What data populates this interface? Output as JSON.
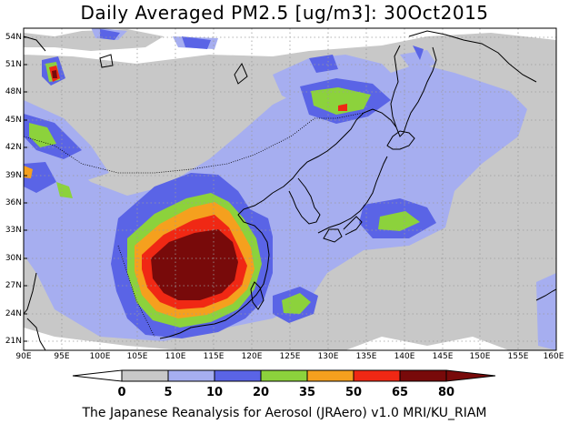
{
  "title": "Daily Averaged PM2.5 [ug/m3]: 30Oct2015",
  "footer": "The Japanese Reanalysis for Aerosol (JRAero) v1.0 MRI/KU_RIAM",
  "map": {
    "lon_range": [
      90,
      160
    ],
    "lat_range": [
      20,
      55
    ],
    "lat_ticks": [
      "54N",
      "51N",
      "48N",
      "45N",
      "42N",
      "39N",
      "36N",
      "33N",
      "30N",
      "27N",
      "24N",
      "21N"
    ],
    "lon_ticks": [
      "90E",
      "95E",
      "100E",
      "105E",
      "110E",
      "115E",
      "120E",
      "125E",
      "130E",
      "135E",
      "140E",
      "145E",
      "150E",
      "155E",
      "160E"
    ]
  },
  "colorbar": {
    "labels": [
      "0",
      "5",
      "10",
      "20",
      "35",
      "50",
      "65",
      "80"
    ],
    "colors": {
      "c0": "#ffffff",
      "c5": "#c8c8c8",
      "c10": "#a6aef0",
      "c20": "#5a64e6",
      "c35": "#8cd23c",
      "c50": "#f5a01e",
      "c65": "#f02814",
      "c80": "#780a0a"
    }
  }
}
